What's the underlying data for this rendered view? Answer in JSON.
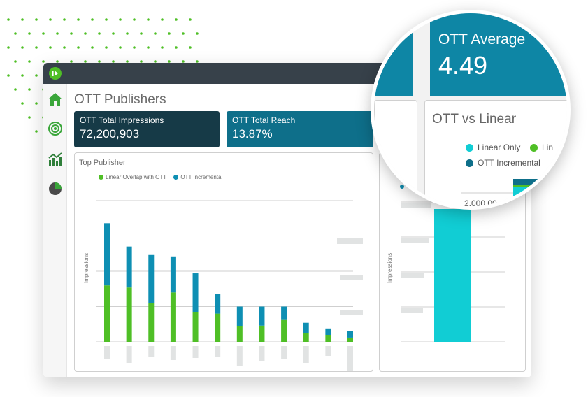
{
  "app": {
    "page_title": "OTT Publishers",
    "nav_icons": [
      "home-icon",
      "target-icon",
      "chart-icon",
      "pie-chart-icon"
    ]
  },
  "kpis": [
    {
      "label": "OTT Total Impressions",
      "value": "72,200,903"
    },
    {
      "label": "OTT Total Reach",
      "value": "13.87%"
    }
  ],
  "top_publisher": {
    "title": "Top Publisher",
    "legend": [
      "Linear Overlap with OTT",
      "OTT Incremental"
    ],
    "ylabel": "Impressions"
  },
  "side_chart": {
    "ylabel": "Impressions"
  },
  "magnifier": {
    "avg_label": "OTT Average",
    "avg_value": "4.49",
    "vs_title": "OTT vs Linear",
    "legend": [
      "Linear Only",
      "Lin",
      "OTT Incremental"
    ],
    "tick": "2,000,00"
  },
  "colors": {
    "green": "#4fbf26",
    "blue": "#0e8fb3",
    "cyan": "#11cdd4",
    "dark": "#163a47",
    "teal": "#0e6f8a"
  },
  "chart_data": [
    {
      "type": "bar",
      "title": "Top Publisher",
      "ylabel": "Impressions",
      "stacked": true,
      "categories": [
        "",
        "",
        "",
        "",
        "",
        "",
        "",
        "",
        "",
        "",
        "",
        ""
      ],
      "series": [
        {
          "name": "Linear Overlap with OTT",
          "values": [
            80,
            77,
            55,
            70,
            42,
            40,
            22,
            23,
            31,
            12,
            9,
            6
          ]
        },
        {
          "name": "OTT Incremental",
          "values": [
            88,
            58,
            68,
            51,
            55,
            28,
            28,
            27,
            19,
            15,
            10,
            9
          ]
        }
      ],
      "ylim": [
        0,
        200
      ],
      "grid": true,
      "legend_position": "top-left"
    },
    {
      "type": "bar",
      "title": "OTT vs Linear",
      "ylabel": "Impressions",
      "stacked": true,
      "categories": [
        ""
      ],
      "series": [
        {
          "name": "Linear Only",
          "values": [
            190
          ]
        },
        {
          "name": "OTT Incremental",
          "values": [
            5
          ]
        }
      ],
      "grid": true
    }
  ]
}
